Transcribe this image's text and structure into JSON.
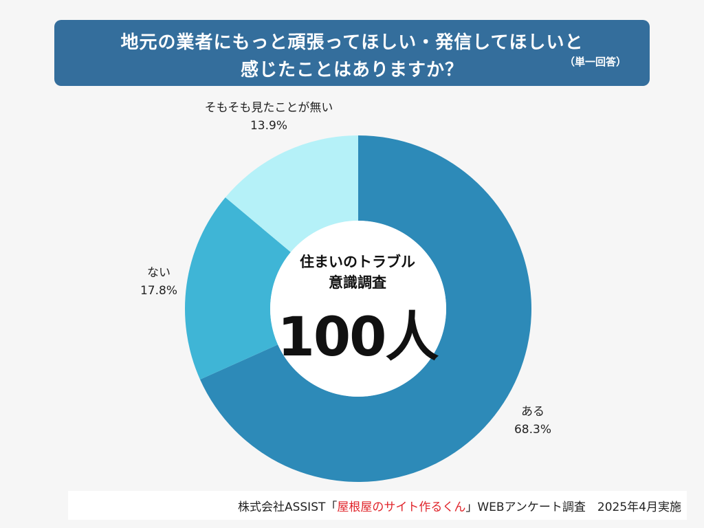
{
  "banner": {
    "line1": "地元の業者にもっと頑張ってほしい・発信してほしいと",
    "line2": "感じたことはありますか？",
    "note": "（単一回答）"
  },
  "center": {
    "title_line1": "住まいのトラブル",
    "title_line2": "意識調査",
    "count": "100人"
  },
  "footer": {
    "prefix": "株式会社ASSIST「",
    "highlight": "屋根屋のサイト作るくん",
    "suffix": "」WEBアンケート調査　2025年4月実施",
    "highlight_color": "#e0242a"
  },
  "chart_data": {
    "type": "pie",
    "donut": true,
    "categories": [
      "ある",
      "ない",
      "そもそも見たことが無い"
    ],
    "values": [
      68.3,
      17.8,
      13.9
    ],
    "value_labels": [
      "68.3%",
      "17.8%",
      "13.9%"
    ],
    "colors": [
      "#2d8ab8",
      "#3fb5d6",
      "#b5f1f8"
    ],
    "start": "12 o'clock",
    "direction": "clockwise"
  }
}
